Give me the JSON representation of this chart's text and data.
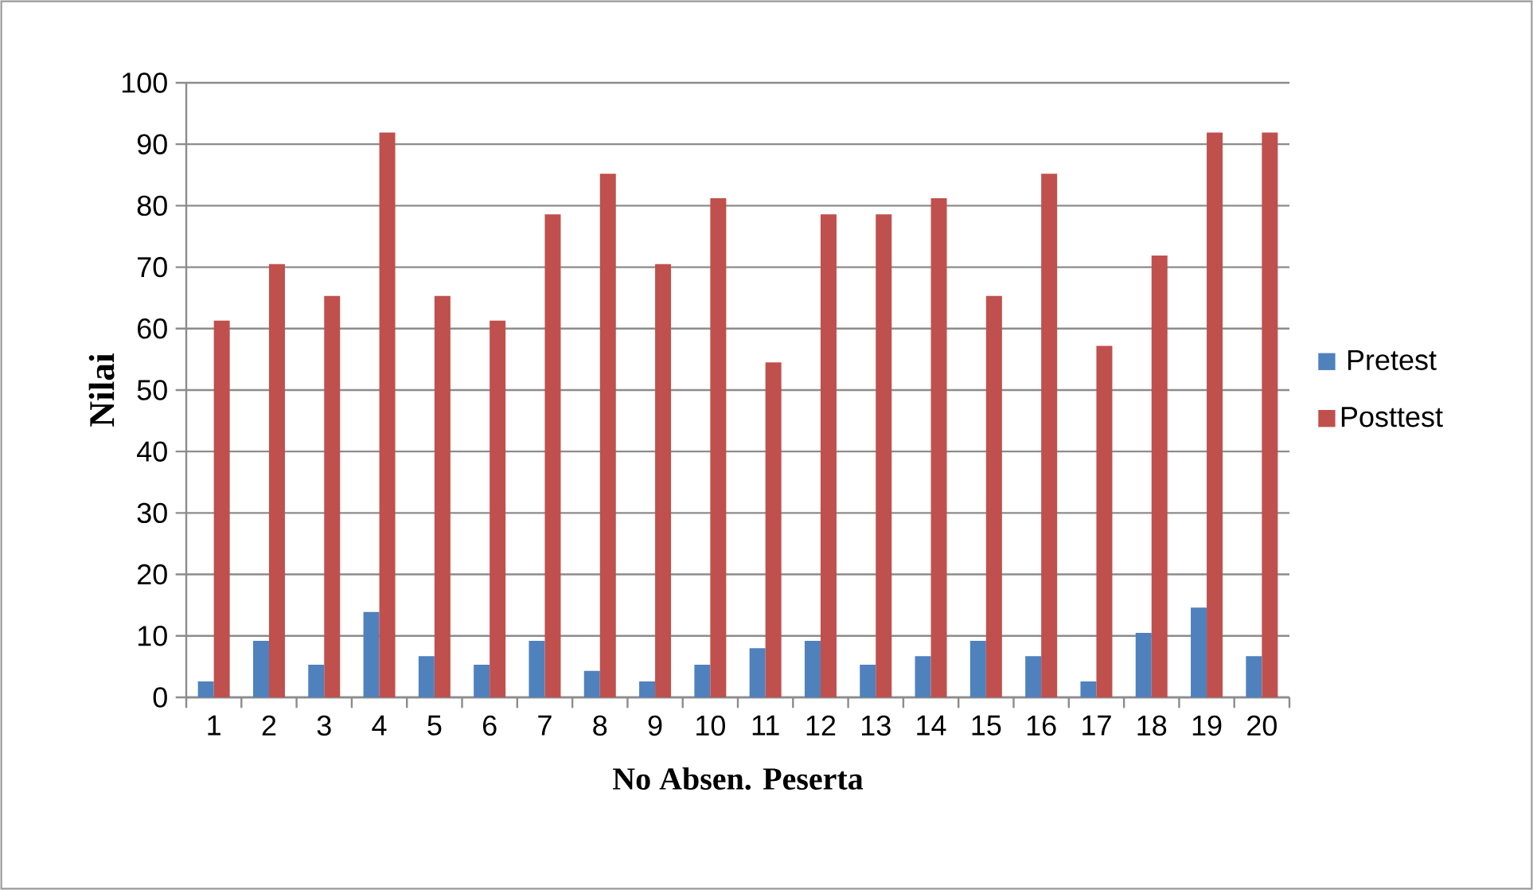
{
  "chart_data": {
    "type": "bar",
    "xlabel": "No Absen. Peserta",
    "ylabel": "Nilai",
    "categories": [
      "1",
      "2",
      "3",
      "4",
      "5",
      "6",
      "7",
      "8",
      "9",
      "10",
      "11",
      "12",
      "13",
      "14",
      "15",
      "16",
      "17",
      "18",
      "19",
      "20"
    ],
    "series": [
      {
        "name": "Pretest",
        "color": "#4f81bd",
        "values": [
          2.6,
          9.2,
          5.3,
          13.9,
          6.7,
          5.3,
          9.2,
          4.3,
          2.6,
          5.3,
          8.0,
          9.2,
          5.3,
          6.7,
          9.2,
          6.7,
          2.6,
          10.5,
          14.6,
          6.7
        ]
      },
      {
        "name": "Posttest",
        "color": "#c0504d",
        "values": [
          61.3,
          70.5,
          65.3,
          91.9,
          65.3,
          61.3,
          78.6,
          85.2,
          70.5,
          81.2,
          54.5,
          78.6,
          78.6,
          81.2,
          65.3,
          85.2,
          57.2,
          71.9,
          91.9,
          91.9
        ]
      }
    ],
    "ylim": [
      0,
      100
    ],
    "yticks": [
      0,
      10,
      20,
      30,
      40,
      50,
      60,
      70,
      80,
      90,
      100
    ],
    "grid": "y",
    "legend": "right"
  }
}
